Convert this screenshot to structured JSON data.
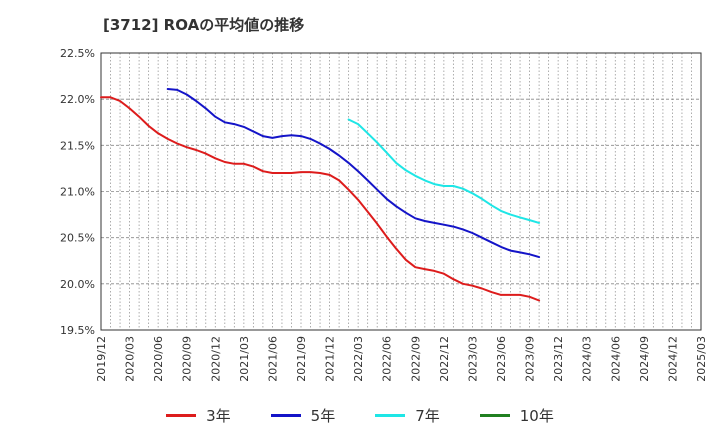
{
  "chart_data": {
    "type": "line",
    "title": "[3712]  ROAの平均値の推移",
    "x_ticks": [
      "2019/12",
      "2020/03",
      "2020/06",
      "2020/09",
      "2020/12",
      "2021/03",
      "2021/06",
      "2021/09",
      "2021/12",
      "2022/03",
      "2022/06",
      "2022/09",
      "2022/12",
      "2023/03",
      "2023/06",
      "2023/09",
      "2023/12",
      "2024/03",
      "2024/06",
      "2024/09",
      "2024/12",
      "2025/03"
    ],
    "y_ticks": [
      "22.5%",
      "22.0%",
      "21.5%",
      "21.0%",
      "20.5%",
      "20.0%",
      "19.5%"
    ],
    "ylim": [
      19.5,
      22.5
    ],
    "grid": true,
    "legend_position": "bottom",
    "series": [
      {
        "name": "3年",
        "color": "#dd1c1c",
        "values": [
          22.02,
          22.02,
          21.98,
          21.9,
          21.81,
          21.71,
          21.63,
          21.57,
          21.52,
          21.48,
          21.45,
          21.41,
          21.36,
          21.32,
          21.3,
          21.3,
          21.27,
          21.22,
          21.2,
          21.2,
          21.2,
          21.21,
          21.21,
          21.2,
          21.18,
          21.12,
          21.02,
          20.91,
          20.78,
          20.65,
          20.51,
          20.38,
          20.26,
          20.18,
          20.16,
          20.14,
          20.11,
          20.05,
          20.0,
          19.98,
          19.95,
          19.91,
          19.88,
          19.88,
          19.88,
          19.86,
          19.82
        ]
      },
      {
        "name": "5年",
        "color": "#1414c8",
        "values": [
          null,
          null,
          null,
          null,
          null,
          null,
          null,
          22.11,
          22.1,
          22.05,
          21.98,
          21.9,
          21.81,
          21.75,
          21.73,
          21.7,
          21.65,
          21.6,
          21.58,
          21.6,
          21.61,
          21.6,
          21.57,
          21.52,
          21.46,
          21.39,
          21.31,
          21.22,
          21.12,
          21.02,
          20.92,
          20.84,
          20.77,
          20.71,
          20.68,
          20.66,
          20.64,
          20.62,
          20.59,
          20.55,
          20.5,
          20.45,
          20.4,
          20.36,
          20.34,
          20.32,
          20.29
        ]
      },
      {
        "name": "7年",
        "color": "#1ee6e6",
        "values": [
          null,
          null,
          null,
          null,
          null,
          null,
          null,
          null,
          null,
          null,
          null,
          null,
          null,
          null,
          null,
          null,
          null,
          null,
          null,
          null,
          null,
          null,
          null,
          null,
          null,
          null,
          21.78,
          21.73,
          21.63,
          21.53,
          21.42,
          21.31,
          21.23,
          21.17,
          21.12,
          21.08,
          21.06,
          21.06,
          21.03,
          20.98,
          20.92,
          20.85,
          20.79,
          20.75,
          20.72,
          20.69,
          20.66
        ]
      },
      {
        "name": "10年",
        "color": "#208020",
        "values": []
      }
    ]
  }
}
